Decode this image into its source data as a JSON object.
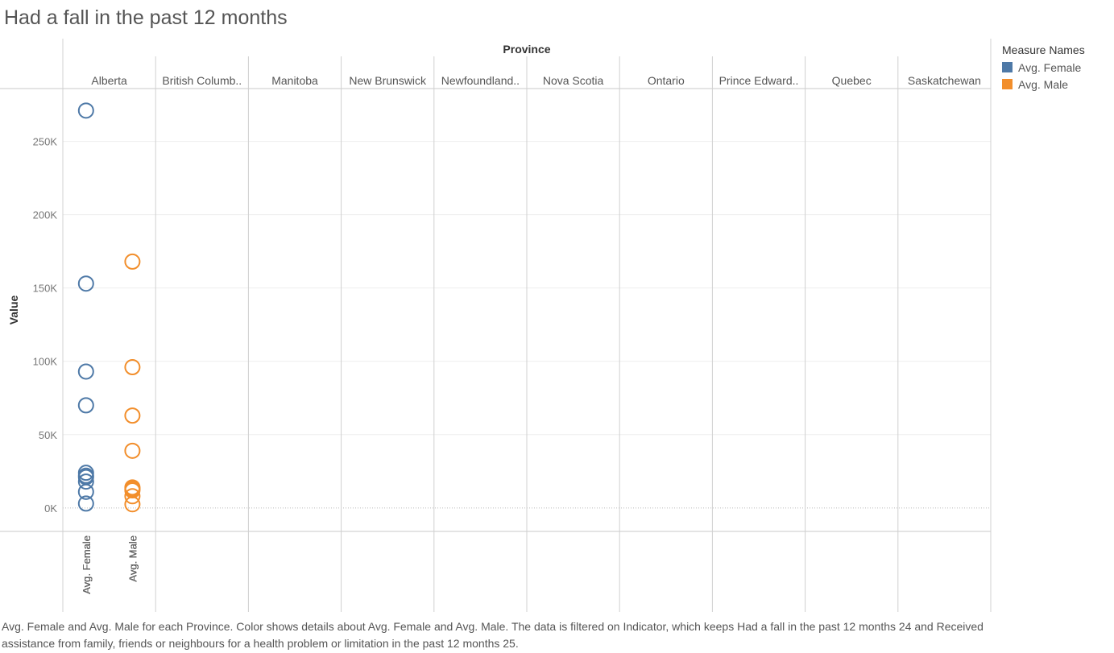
{
  "title": "Had a fall in the past 12 months",
  "legend": {
    "title": "Measure Names",
    "items": [
      {
        "label": "Avg. Female",
        "color": "#4e79a7"
      },
      {
        "label": "Avg. Male",
        "color": "#f28e2b"
      }
    ]
  },
  "caption": "Avg. Female and Avg. Male for each Province.  Color shows details about Avg. Female and Avg. Male. The data is filtered on Indicator, which keeps Had a fall in the past 12 months 24 and Received assistance from family, friends or neighbours for a health problem or limitation in the past 12 months 25.",
  "chart_data": {
    "type": "scatter",
    "title": "Had a fall in the past 12 months",
    "column_header": "Province",
    "ylabel": "Value",
    "ylim": [
      -16000,
      286000
    ],
    "yticks": [
      0,
      50000,
      100000,
      150000,
      200000,
      250000
    ],
    "ytick_labels": [
      "0K",
      "50K",
      "100K",
      "150K",
      "200K",
      "250K"
    ],
    "categories": [
      "Alberta",
      "British Columb..",
      "Manitoba",
      "New Brunswick",
      "Newfoundland..",
      "Nova Scotia",
      "Ontario",
      "Prince Edward..",
      "Quebec",
      "Saskatchewan"
    ],
    "series": [
      {
        "name": "Avg. Female",
        "color": "#4e79a7",
        "values": [
          70000,
          93000,
          24000,
          18000,
          11000,
          22000,
          271000,
          3000,
          153000,
          21000
        ]
      },
      {
        "name": "Avg. Male",
        "color": "#f28e2b",
        "values": [
          39000,
          63000,
          13000,
          12000,
          8000,
          14000,
          168000,
          2500,
          96000,
          13000
        ]
      }
    ],
    "grid": true,
    "legend_position": "top-right"
  }
}
